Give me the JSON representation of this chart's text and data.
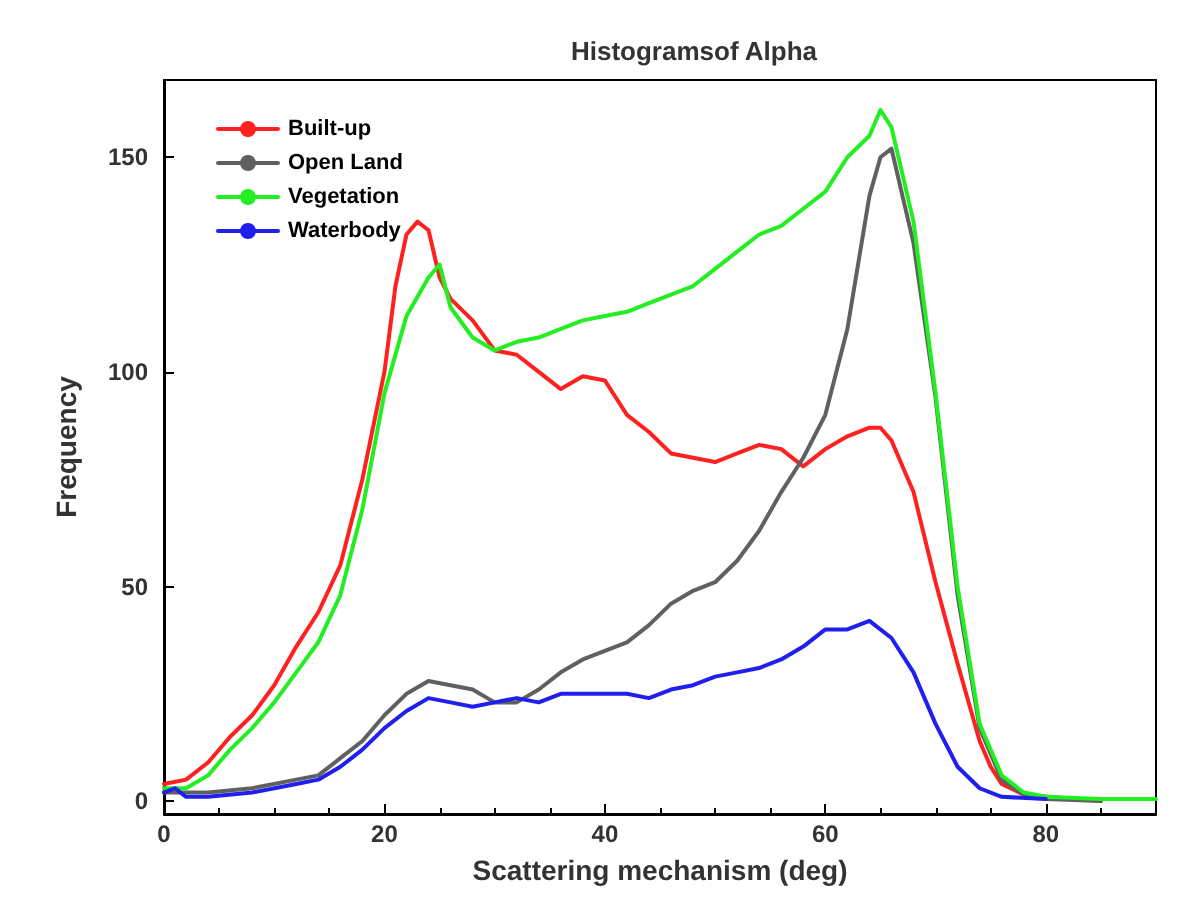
{
  "chart_data": {
    "type": "line",
    "title": "Histogramsof Alpha",
    "xlabel": "Scattering mechanism (deg)",
    "ylabel": "Frequency",
    "xlim": [
      0,
      90
    ],
    "xticks": [
      0,
      20,
      40,
      60,
      80
    ],
    "ylim": [
      -3,
      168
    ],
    "yticks": [
      0,
      50,
      100,
      150
    ],
    "grid": false,
    "legend": "top left",
    "marker": "none",
    "line_style": "solid",
    "series": [
      {
        "name": "Built-up",
        "color": "#ff2020",
        "x": [
          0,
          2,
          4,
          6,
          8,
          10,
          12,
          14,
          16,
          18,
          20,
          21,
          22,
          23,
          24,
          25,
          26,
          28,
          30,
          32,
          34,
          36,
          38,
          40,
          42,
          44,
          46,
          48,
          50,
          52,
          54,
          56,
          58,
          60,
          62,
          64,
          65,
          66,
          68,
          70,
          72,
          74,
          75,
          76,
          78,
          85
        ],
        "values": [
          4,
          5,
          9,
          15,
          20,
          27,
          36,
          44,
          55,
          75,
          100,
          120,
          132,
          135,
          133,
          122,
          117,
          112,
          105,
          104,
          100,
          96,
          99,
          98,
          90,
          86,
          81,
          80,
          79,
          81,
          83,
          82,
          78,
          82,
          85,
          87,
          87,
          84,
          72,
          51,
          32,
          14,
          8,
          4,
          1.5,
          0
        ]
      },
      {
        "name": "Open Land",
        "color": "#606060",
        "x": [
          0,
          4,
          8,
          12,
          14,
          16,
          18,
          20,
          22,
          24,
          26,
          28,
          30,
          32,
          34,
          36,
          38,
          40,
          42,
          44,
          46,
          48,
          50,
          52,
          54,
          56,
          58,
          60,
          62,
          64,
          65,
          66,
          68,
          70,
          72,
          74,
          76,
          78,
          80,
          85
        ],
        "values": [
          2,
          2,
          3,
          5,
          6,
          10,
          14,
          20,
          25,
          28,
          27,
          26,
          23,
          23,
          26,
          30,
          33,
          35,
          37,
          41,
          46,
          49,
          51,
          56,
          63,
          72,
          80,
          90,
          110,
          141,
          150,
          152,
          130,
          94,
          48,
          17,
          5,
          1.5,
          0.5,
          0
        ]
      },
      {
        "name": "Vegetation",
        "color": "#22ee22",
        "x": [
          0,
          2,
          4,
          6,
          8,
          10,
          12,
          14,
          16,
          18,
          20,
          22,
          24,
          25,
          26,
          28,
          30,
          32,
          34,
          36,
          38,
          40,
          42,
          44,
          46,
          48,
          50,
          52,
          54,
          56,
          58,
          60,
          62,
          64,
          65,
          66,
          68,
          70,
          72,
          74,
          76,
          78,
          80,
          85,
          90
        ],
        "values": [
          3,
          3,
          6,
          12,
          17,
          23,
          30,
          37,
          48,
          68,
          95,
          113,
          122,
          125,
          115,
          108,
          105,
          107,
          108,
          110,
          112,
          113,
          114,
          116,
          118,
          120,
          124,
          128,
          132,
          134,
          138,
          142,
          150,
          155,
          161,
          157,
          135,
          95,
          50,
          18,
          6,
          2,
          1,
          0.5,
          0.5
        ]
      },
      {
        "name": "Waterbody",
        "color": "#2020ee",
        "x": [
          0,
          1,
          2,
          4,
          8,
          12,
          14,
          16,
          18,
          20,
          22,
          24,
          26,
          28,
          30,
          32,
          34,
          36,
          38,
          40,
          42,
          44,
          46,
          48,
          50,
          52,
          54,
          56,
          58,
          60,
          62,
          64,
          66,
          68,
          70,
          72,
          74,
          76,
          80
        ],
        "values": [
          2,
          3,
          1,
          1,
          2,
          4,
          5,
          8,
          12,
          17,
          21,
          24,
          23,
          22,
          23,
          24,
          23,
          25,
          25,
          25,
          25,
          24,
          26,
          27,
          29,
          30,
          31,
          33,
          36,
          40,
          40,
          42,
          38,
          30,
          18,
          8,
          3,
          1,
          0.5
        ]
      }
    ]
  }
}
